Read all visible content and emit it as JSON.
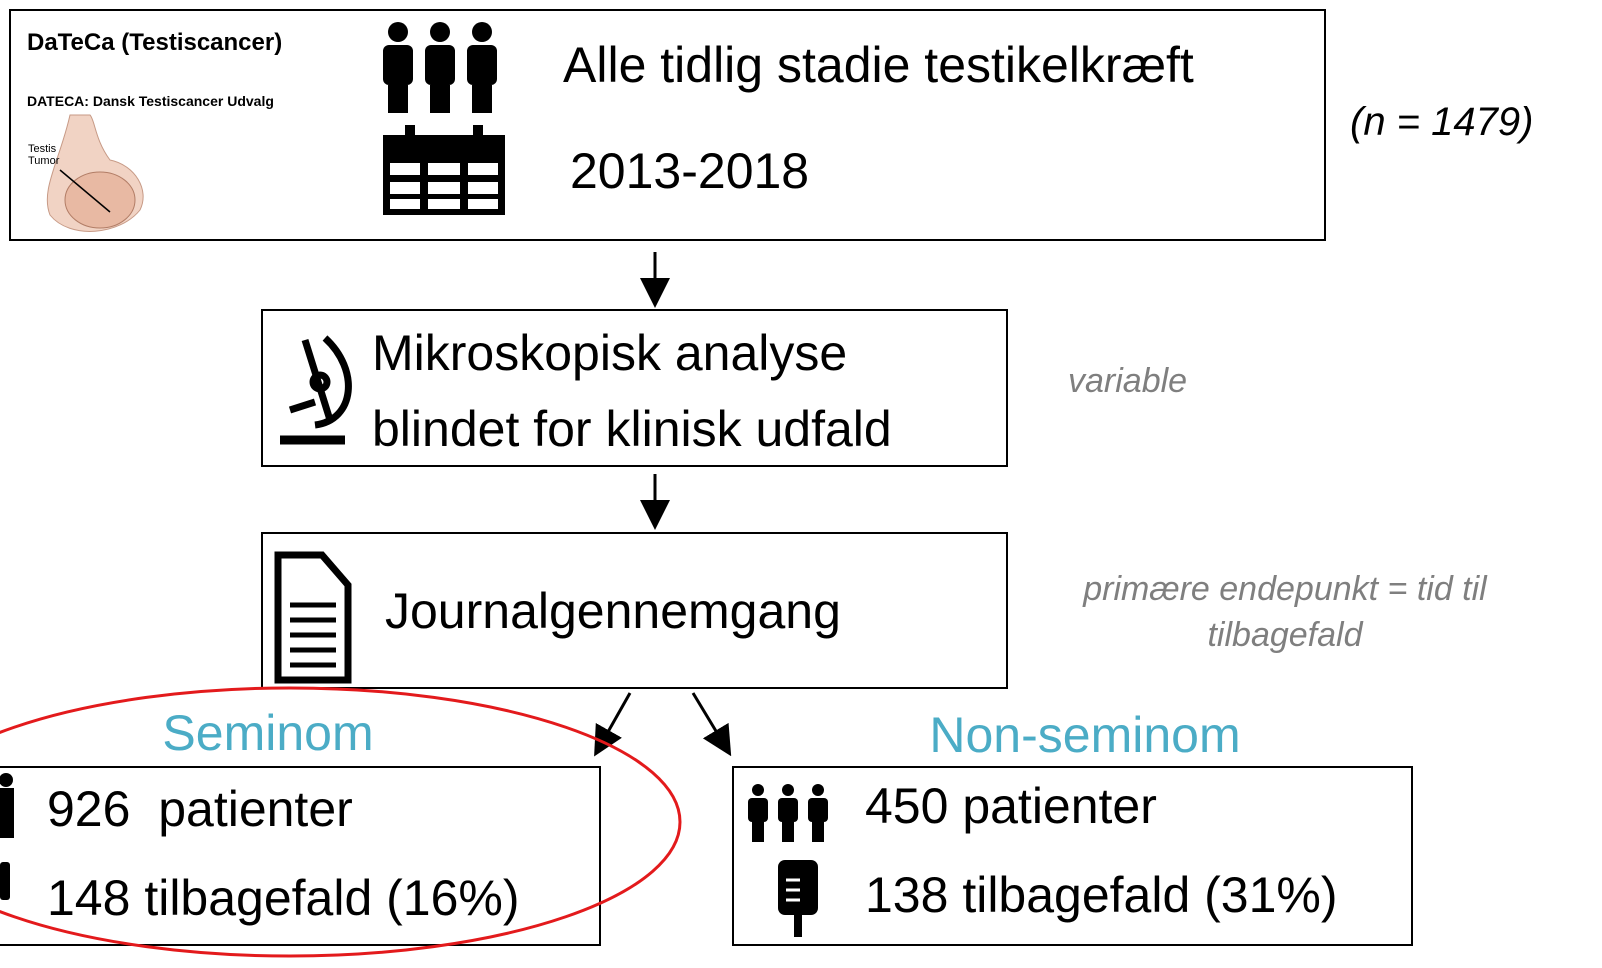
{
  "logo": {
    "title": "DaTeCa (Testiscancer)",
    "subtitle": "DATECA: Dansk Testiscancer Udvalg",
    "labels": [
      "Testis",
      "Tumor"
    ]
  },
  "nodes": [
    {
      "lines": [
        "Alle tidlig stadie testikelkræft",
        "2013-2018"
      ],
      "note": [
        "(n = 1479)"
      ]
    },
    {
      "lines": [
        "Mikroskopisk analyse",
        "blindet for klinisk udfald"
      ],
      "note": [
        "variable"
      ]
    },
    {
      "lines": [
        "Journalgennemgang"
      ],
      "note": [
        "primære endepunkt = tid til",
        "tilbagefald"
      ]
    }
  ],
  "groups": [
    {
      "label": "Seminom",
      "lines": [
        "926  patienter",
        "148 tilbagefald (16%)"
      ]
    },
    {
      "label": "Non-seminom",
      "lines": [
        "450 patienter",
        "138 tilbagefald (31%)"
      ]
    }
  ]
}
